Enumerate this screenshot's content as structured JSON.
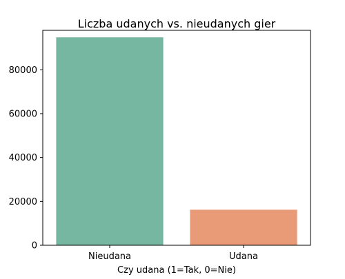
{
  "chart_data": {
    "type": "bar",
    "title": "Liczba udanych vs. nieudanych gier",
    "xlabel": "Czy udana (1=Tak, 0=Nie)",
    "ylabel": "",
    "categories": [
      "Nieudana",
      "Udana"
    ],
    "values": [
      94800,
      16200
    ],
    "colors": [
      "#76b7a2",
      "#e99a77"
    ],
    "ylim": [
      0,
      98000
    ],
    "yticks": [
      0,
      20000,
      40000,
      60000,
      80000
    ],
    "grid": false,
    "legend": "none"
  }
}
